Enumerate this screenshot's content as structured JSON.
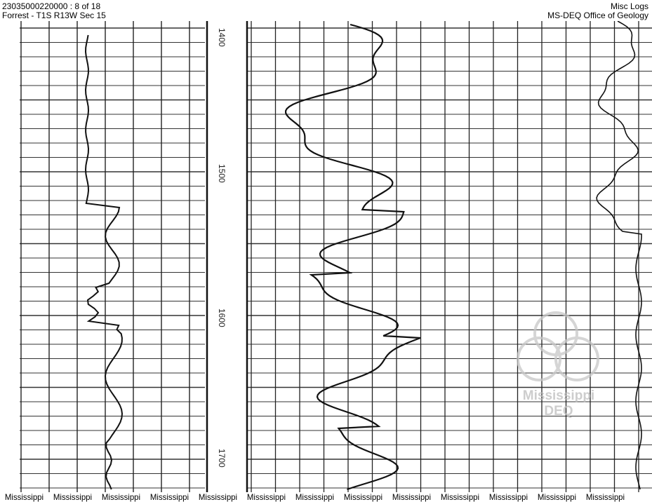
{
  "header": {
    "well_id_page": "23035000220000 : 8 of 18",
    "location": "Forrest - T1S R13W Sec 15",
    "log_type": "Misc Logs",
    "agency": "MS-DEQ Office of Geology"
  },
  "depth_track": {
    "labels": [
      "1400",
      "1500",
      "1600",
      "1700"
    ]
  },
  "watermark": {
    "line1": "Mississippi",
    "line2": "DEQ"
  },
  "footer": {
    "labels": [
      "Mississippi",
      "Mississippi",
      "Mississippi",
      "Mississippi",
      "Mississippi",
      "Mississippi",
      "Mississippi",
      "Mississippi",
      "Mississippi",
      "Mississippi",
      "Mississippi",
      "Mississippi",
      "Mississippi"
    ]
  }
}
